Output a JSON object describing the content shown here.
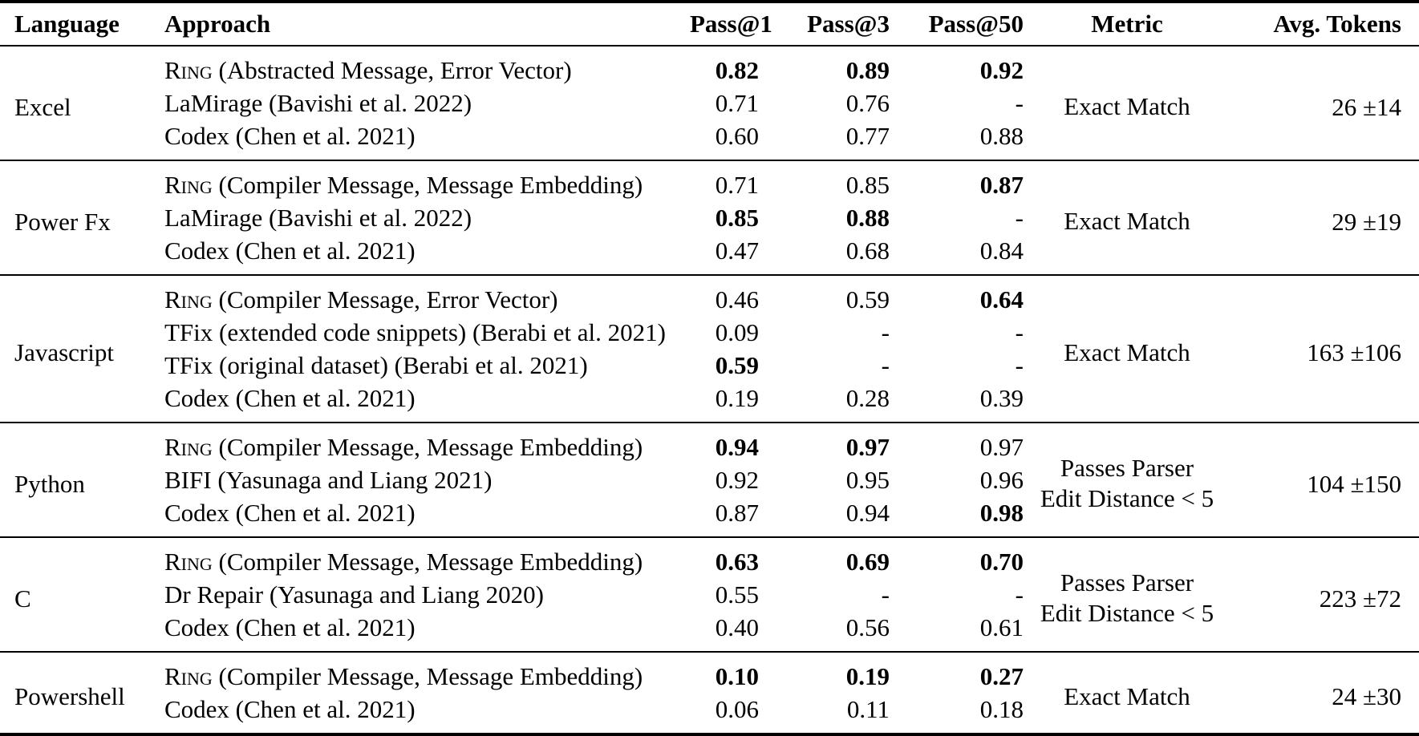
{
  "table": {
    "headers": {
      "language": "Language",
      "approach": "Approach",
      "pass1": "Pass@1",
      "pass3": "Pass@3",
      "pass50": "Pass@50",
      "metric": "Metric",
      "avg_tokens": "Avg. Tokens"
    },
    "groups": [
      {
        "language": "Excel",
        "metric_lines": [
          "Exact Match"
        ],
        "avg_tokens": "26 ±14",
        "rows": [
          {
            "approach_smallcaps": "Ring",
            "approach": " (Abstracted Message, Error Vector)",
            "pass1": {
              "v": "0.82",
              "b": true
            },
            "pass3": {
              "v": "0.89",
              "b": true
            },
            "pass50": {
              "v": "0.92",
              "b": true
            }
          },
          {
            "approach_smallcaps": "",
            "approach": "LaMirage (Bavishi et al. 2022)",
            "pass1": {
              "v": "0.71",
              "b": false
            },
            "pass3": {
              "v": "0.76",
              "b": false
            },
            "pass50": {
              "v": "-",
              "b": false
            }
          },
          {
            "approach_smallcaps": "",
            "approach": "Codex (Chen et al. 2021)",
            "pass1": {
              "v": "0.60",
              "b": false
            },
            "pass3": {
              "v": "0.77",
              "b": false
            },
            "pass50": {
              "v": "0.88",
              "b": false
            }
          }
        ]
      },
      {
        "language": "Power Fx",
        "metric_lines": [
          "Exact Match"
        ],
        "avg_tokens": "29 ±19",
        "rows": [
          {
            "approach_smallcaps": "Ring",
            "approach": " (Compiler Message, Message Embedding)",
            "pass1": {
              "v": "0.71",
              "b": false
            },
            "pass3": {
              "v": "0.85",
              "b": false
            },
            "pass50": {
              "v": "0.87",
              "b": true
            }
          },
          {
            "approach_smallcaps": "",
            "approach": "LaMirage (Bavishi et al. 2022)",
            "pass1": {
              "v": "0.85",
              "b": true
            },
            "pass3": {
              "v": "0.88",
              "b": true
            },
            "pass50": {
              "v": "-",
              "b": false
            }
          },
          {
            "approach_smallcaps": "",
            "approach": "Codex (Chen et al. 2021)",
            "pass1": {
              "v": "0.47",
              "b": false
            },
            "pass3": {
              "v": "0.68",
              "b": false
            },
            "pass50": {
              "v": "0.84",
              "b": false
            }
          }
        ]
      },
      {
        "language": "Javascript",
        "metric_lines": [
          "Exact Match"
        ],
        "avg_tokens": "163 ±106",
        "rows": [
          {
            "approach_smallcaps": "Ring",
            "approach": " (Compiler Message, Error Vector)",
            "pass1": {
              "v": "0.46",
              "b": false
            },
            "pass3": {
              "v": "0.59",
              "b": false
            },
            "pass50": {
              "v": "0.64",
              "b": true
            }
          },
          {
            "approach_smallcaps": "",
            "approach": "TFix (extended code snippets) (Berabi et al. 2021)",
            "pass1": {
              "v": "0.09",
              "b": false
            },
            "pass3": {
              "v": "-",
              "b": false
            },
            "pass50": {
              "v": "-",
              "b": false
            }
          },
          {
            "approach_smallcaps": "",
            "approach": "TFix (original dataset) (Berabi et al. 2021)",
            "pass1": {
              "v": "0.59",
              "b": true
            },
            "pass3": {
              "v": "-",
              "b": false
            },
            "pass50": {
              "v": "-",
              "b": false
            }
          },
          {
            "approach_smallcaps": "",
            "approach": "Codex (Chen et al. 2021)",
            "pass1": {
              "v": "0.19",
              "b": false
            },
            "pass3": {
              "v": "0.28",
              "b": false
            },
            "pass50": {
              "v": "0.39",
              "b": false
            }
          }
        ]
      },
      {
        "language": "Python",
        "metric_lines": [
          "Passes Parser",
          "Edit Distance < 5"
        ],
        "avg_tokens": "104 ±150",
        "rows": [
          {
            "approach_smallcaps": "Ring",
            "approach": " (Compiler Message, Message Embedding)",
            "pass1": {
              "v": "0.94",
              "b": true
            },
            "pass3": {
              "v": "0.97",
              "b": true
            },
            "pass50": {
              "v": "0.97",
              "b": false
            }
          },
          {
            "approach_smallcaps": "",
            "approach": "BIFI (Yasunaga and Liang 2021)",
            "pass1": {
              "v": "0.92",
              "b": false
            },
            "pass3": {
              "v": "0.95",
              "b": false
            },
            "pass50": {
              "v": "0.96",
              "b": false
            }
          },
          {
            "approach_smallcaps": "",
            "approach": "Codex (Chen et al. 2021)",
            "pass1": {
              "v": "0.87",
              "b": false
            },
            "pass3": {
              "v": "0.94",
              "b": false
            },
            "pass50": {
              "v": "0.98",
              "b": true
            }
          }
        ]
      },
      {
        "language": "C",
        "metric_lines": [
          "Passes Parser",
          "Edit Distance < 5"
        ],
        "avg_tokens": "223 ±72",
        "rows": [
          {
            "approach_smallcaps": "Ring",
            "approach": " (Compiler Message, Message Embedding)",
            "pass1": {
              "v": "0.63",
              "b": true
            },
            "pass3": {
              "v": "0.69",
              "b": true
            },
            "pass50": {
              "v": "0.70",
              "b": true
            }
          },
          {
            "approach_smallcaps": "",
            "approach": "Dr Repair (Yasunaga and Liang 2020)",
            "pass1": {
              "v": "0.55",
              "b": false
            },
            "pass3": {
              "v": "-",
              "b": false
            },
            "pass50": {
              "v": "-",
              "b": false
            }
          },
          {
            "approach_smallcaps": "",
            "approach": "Codex (Chen et al. 2021)",
            "pass1": {
              "v": "0.40",
              "b": false
            },
            "pass3": {
              "v": "0.56",
              "b": false
            },
            "pass50": {
              "v": "0.61",
              "b": false
            }
          }
        ]
      },
      {
        "language": "Powershell",
        "metric_lines": [
          "Exact Match"
        ],
        "avg_tokens": "24 ±30",
        "rows": [
          {
            "approach_smallcaps": "Ring",
            "approach": " (Compiler Message, Message Embedding)",
            "pass1": {
              "v": "0.10",
              "b": true
            },
            "pass3": {
              "v": "0.19",
              "b": true
            },
            "pass50": {
              "v": "0.27",
              "b": true
            }
          },
          {
            "approach_smallcaps": "",
            "approach": "Codex (Chen et al. 2021)",
            "pass1": {
              "v": "0.06",
              "b": false
            },
            "pass3": {
              "v": "0.11",
              "b": false
            },
            "pass50": {
              "v": "0.18",
              "b": false
            }
          }
        ]
      }
    ]
  }
}
